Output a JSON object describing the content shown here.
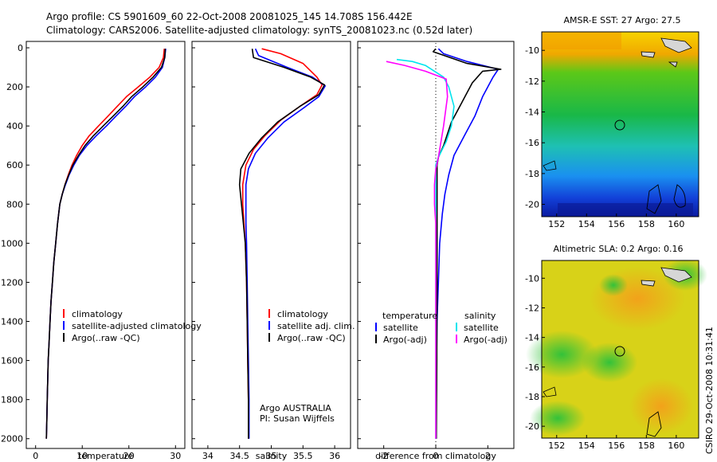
{
  "header": {
    "line1": "Argo profile: CS 5901609_60 22-Oct-2008 20081025_145 14.708S 156.442E",
    "line2": "Climatology: CARS2006. Satellite-adjusted climatology: synTS_20081023.nc (0.52d later)"
  },
  "side_label": "CSIRO 29-Oct-2008 10:31:41",
  "colors": {
    "red": "#ff0000",
    "blue": "#0000ff",
    "black": "#000000",
    "cyan": "#00e5ee",
    "magenta": "#ff00ff"
  },
  "chart_data": [
    {
      "type": "line",
      "xlabel": "temperature",
      "ylim": [
        2050,
        0
      ],
      "xlim": [
        -2,
        32
      ],
      "xticks": [
        0,
        10,
        20,
        30
      ],
      "yticks": [
        0,
        200,
        400,
        600,
        800,
        1000,
        1200,
        1400,
        1600,
        1800,
        2000
      ],
      "legend": [
        "climatology",
        "satellite-adjusted climatology",
        "Argo(..raw -QC)"
      ],
      "series": [
        {
          "color": "red",
          "points": [
            [
              27.6,
              5
            ],
            [
              27.4,
              50
            ],
            [
              26.5,
              100
            ],
            [
              24.5,
              150
            ],
            [
              22,
              200
            ],
            [
              19.5,
              250
            ],
            [
              17.5,
              300
            ],
            [
              15.5,
              350
            ],
            [
              13.5,
              400
            ],
            [
              11.5,
              450
            ],
            [
              10,
              500
            ],
            [
              8.8,
              550
            ],
            [
              7.8,
              600
            ],
            [
              7,
              650
            ],
            [
              6.3,
              700
            ],
            [
              5.7,
              750
            ],
            [
              5.2,
              800
            ],
            [
              4.7,
              900
            ],
            [
              4.3,
              1000
            ],
            [
              3.9,
              1100
            ],
            [
              3.6,
              1200
            ],
            [
              3.3,
              1300
            ],
            [
              3.1,
              1400
            ],
            [
              2.9,
              1500
            ],
            [
              2.7,
              1600
            ],
            [
              2.6,
              1700
            ],
            [
              2.5,
              1800
            ],
            [
              2.4,
              1900
            ],
            [
              2.3,
              2000
            ]
          ]
        },
        {
          "color": "blue",
          "points": [
            [
              27.9,
              5
            ],
            [
              27.7,
              50
            ],
            [
              27.2,
              100
            ],
            [
              25.7,
              150
            ],
            [
              23.6,
              200
            ],
            [
              21.2,
              250
            ],
            [
              19.3,
              300
            ],
            [
              17.2,
              350
            ],
            [
              15.2,
              400
            ],
            [
              13,
              450
            ],
            [
              11,
              500
            ],
            [
              9.4,
              550
            ],
            [
              8.2,
              600
            ],
            [
              7.2,
              650
            ],
            [
              6.4,
              700
            ],
            [
              5.7,
              750
            ],
            [
              5.2,
              800
            ],
            [
              4.7,
              900
            ],
            [
              4.3,
              1000
            ],
            [
              3.9,
              1100
            ],
            [
              3.6,
              1200
            ],
            [
              3.3,
              1300
            ],
            [
              3.1,
              1400
            ],
            [
              2.9,
              1500
            ],
            [
              2.7,
              1600
            ],
            [
              2.6,
              1700
            ],
            [
              2.5,
              1800
            ],
            [
              2.4,
              1900
            ],
            [
              2.3,
              2000
            ]
          ]
        },
        {
          "color": "black",
          "points": [
            [
              27.8,
              5
            ],
            [
              27.7,
              50
            ],
            [
              27,
              100
            ],
            [
              25.2,
              150
            ],
            [
              23,
              200
            ],
            [
              20.6,
              250
            ],
            [
              18.7,
              300
            ],
            [
              16.6,
              350
            ],
            [
              14.5,
              400
            ],
            [
              12.4,
              450
            ],
            [
              10.6,
              500
            ],
            [
              9.2,
              550
            ],
            [
              8,
              600
            ],
            [
              7.1,
              650
            ],
            [
              6.3,
              700
            ],
            [
              5.7,
              750
            ],
            [
              5.2,
              800
            ],
            [
              4.7,
              900
            ],
            [
              4.3,
              1000
            ],
            [
              3.9,
              1100
            ],
            [
              3.6,
              1200
            ],
            [
              3.3,
              1300
            ],
            [
              3.1,
              1400
            ],
            [
              2.9,
              1500
            ],
            [
              2.7,
              1600
            ],
            [
              2.6,
              1700
            ],
            [
              2.5,
              1800
            ],
            [
              2.4,
              1900
            ],
            [
              2.3,
              2000
            ]
          ]
        }
      ]
    },
    {
      "type": "line",
      "xlabel": "salinity",
      "ylim": [
        2050,
        0
      ],
      "xlim": [
        33.75,
        36.25
      ],
      "xticks": [
        34,
        34.5,
        35,
        35.5,
        36
      ],
      "legend": [
        "climatology",
        "satellite adj. clim.",
        "Argo(..raw -QC)"
      ],
      "annotation": [
        "Argo AUSTRALIA",
        "PI: Susan Wijffels"
      ],
      "series": [
        {
          "color": "red",
          "points": [
            [
              34.85,
              5
            ],
            [
              35.15,
              30
            ],
            [
              35.5,
              80
            ],
            [
              35.72,
              150
            ],
            [
              35.8,
              190
            ],
            [
              35.72,
              240
            ],
            [
              35.45,
              300
            ],
            [
              35.15,
              370
            ],
            [
              34.9,
              450
            ],
            [
              34.72,
              520
            ],
            [
              34.6,
              600
            ],
            [
              34.55,
              700
            ],
            [
              34.55,
              800
            ],
            [
              34.57,
              900
            ],
            [
              34.59,
              1000
            ],
            [
              34.61,
              1200
            ],
            [
              34.62,
              1400
            ],
            [
              34.63,
              1600
            ],
            [
              34.64,
              1800
            ],
            [
              34.64,
              2000
            ]
          ]
        },
        {
          "color": "blue",
          "points": [
            [
              34.75,
              5
            ],
            [
              34.8,
              40
            ],
            [
              35.25,
              100
            ],
            [
              35.65,
              150
            ],
            [
              35.85,
              195
            ],
            [
              35.75,
              250
            ],
            [
              35.5,
              310
            ],
            [
              35.2,
              380
            ],
            [
              34.95,
              460
            ],
            [
              34.75,
              540
            ],
            [
              34.64,
              620
            ],
            [
              34.6,
              700
            ],
            [
              34.6,
              800
            ],
            [
              34.6,
              900
            ],
            [
              34.61,
              1000
            ],
            [
              34.62,
              1200
            ],
            [
              34.63,
              1400
            ],
            [
              34.64,
              1600
            ],
            [
              34.65,
              1800
            ],
            [
              34.65,
              2000
            ]
          ]
        },
        {
          "color": "black",
          "points": [
            [
              34.7,
              5
            ],
            [
              34.72,
              50
            ],
            [
              35.2,
              100
            ],
            [
              35.62,
              150
            ],
            [
              35.84,
              190
            ],
            [
              35.75,
              240
            ],
            [
              35.45,
              300
            ],
            [
              35.1,
              380
            ],
            [
              34.85,
              460
            ],
            [
              34.65,
              540
            ],
            [
              34.52,
              620
            ],
            [
              34.5,
              700
            ],
            [
              34.53,
              800
            ],
            [
              34.56,
              900
            ],
            [
              34.59,
              1000
            ],
            [
              34.61,
              1200
            ],
            [
              34.62,
              1400
            ],
            [
              34.63,
              1600
            ],
            [
              34.64,
              1800
            ],
            [
              34.64,
              2000
            ]
          ]
        }
      ]
    },
    {
      "type": "line",
      "xlabel": "difference from climatology",
      "ylim": [
        2050,
        0
      ],
      "xlim": [
        -3,
        3
      ],
      "xticks": [
        -2,
        0,
        2
      ],
      "legend_left_title": "temperature",
      "legend_right_title": "salinity",
      "legend_left": [
        "satellite",
        "Argo(-adj)"
      ],
      "legend_right": [
        "satellite",
        "Argo(-adj)"
      ],
      "series": [
        {
          "color": "blue",
          "points": [
            [
              0.1,
              5
            ],
            [
              0.3,
              30
            ],
            [
              1.2,
              70
            ],
            [
              2.4,
              110
            ],
            [
              2.2,
              150
            ],
            [
              1.8,
              250
            ],
            [
              1.5,
              350
            ],
            [
              1.1,
              450
            ],
            [
              0.7,
              550
            ],
            [
              0.5,
              650
            ],
            [
              0.35,
              750
            ],
            [
              0.25,
              850
            ],
            [
              0.15,
              1000
            ],
            [
              0.1,
              1200
            ],
            [
              0.05,
              1400
            ],
            [
              0.03,
              1600
            ],
            [
              0.02,
              1800
            ],
            [
              0.01,
              2000
            ]
          ]
        },
        {
          "color": "black",
          "points": [
            [
              0,
              5
            ],
            [
              -0.1,
              20
            ],
            [
              1.2,
              80
            ],
            [
              2.5,
              110
            ],
            [
              1.8,
              120
            ],
            [
              1.4,
              180
            ],
            [
              1,
              280
            ],
            [
              0.6,
              380
            ],
            [
              0.3,
              500
            ],
            [
              0.1,
              560
            ],
            [
              0.05,
              600
            ],
            [
              0.05,
              700
            ],
            [
              0.05,
              800
            ],
            [
              0.05,
              1000
            ],
            [
              0.05,
              1200
            ],
            [
              0.04,
              1400
            ],
            [
              0.04,
              1600
            ],
            [
              0.03,
              1800
            ],
            [
              0.02,
              2000
            ]
          ]
        },
        {
          "color": "cyan",
          "points": [
            [
              -1.5,
              60
            ],
            [
              -0.9,
              70
            ],
            [
              -0.4,
              90
            ],
            [
              0.3,
              150
            ],
            [
              0.5,
              200
            ],
            [
              0.7,
              300
            ],
            [
              0.6,
              400
            ],
            [
              0.4,
              480
            ],
            [
              0.1,
              560
            ],
            [
              0,
              600
            ],
            [
              0,
              800
            ],
            [
              0,
              1000
            ],
            [
              0,
              1400
            ],
            [
              0,
              1800
            ],
            [
              0,
              2000
            ]
          ]
        },
        {
          "color": "magenta",
          "points": [
            [
              -1.9,
              70
            ],
            [
              -1.2,
              90
            ],
            [
              -0.4,
              120
            ],
            [
              0.4,
              160
            ],
            [
              0.45,
              250
            ],
            [
              0.3,
              400
            ],
            [
              0.1,
              560
            ],
            [
              0,
              620
            ],
            [
              -0.05,
              700
            ],
            [
              -0.05,
              800
            ],
            [
              0,
              900
            ],
            [
              0,
              1000
            ],
            [
              0,
              1400
            ],
            [
              0,
              2000
            ]
          ]
        }
      ]
    }
  ],
  "maps": [
    {
      "title": "AMSR-E SST: 27 Argo: 27.5",
      "xticks": [
        "152",
        "154",
        "156",
        "158",
        "160"
      ],
      "yticks": [
        "-10",
        "-12",
        "-14",
        "-16",
        "-18",
        "-20"
      ]
    },
    {
      "title": "Altimetric SLA: 0.2 Argo: 0.16",
      "xticks": [
        "152",
        "154",
        "156",
        "158",
        "160"
      ],
      "yticks": [
        "-10",
        "-12",
        "-14",
        "-16",
        "-18",
        "-20"
      ]
    }
  ]
}
